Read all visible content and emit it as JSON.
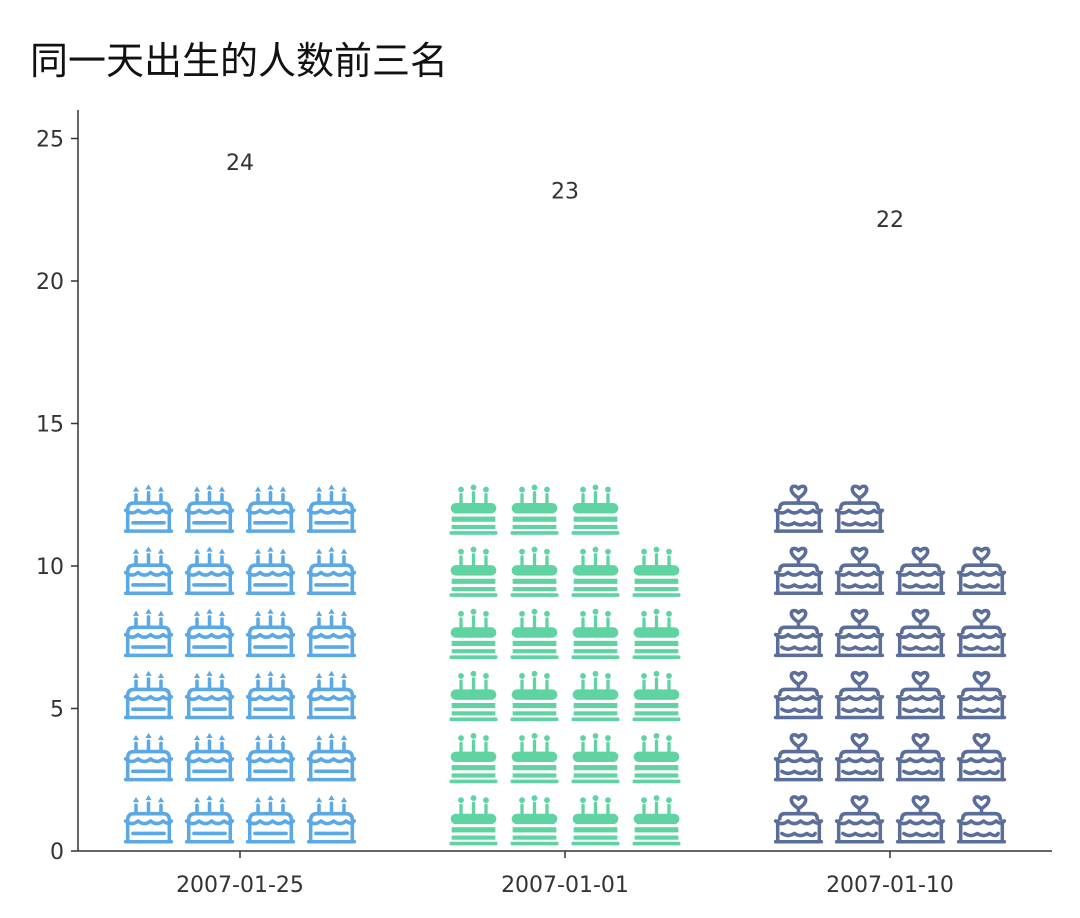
{
  "chart_data": {
    "type": "bar",
    "title": "同一天出生的人数前三名",
    "xlabel": "",
    "ylabel": "",
    "categories": [
      "2007-01-25",
      "2007-01-01",
      "2007-01-10"
    ],
    "values": [
      24,
      23,
      22
    ],
    "colors": [
      "#5aa9e6",
      "#5fd3a2",
      "#5b6e99"
    ],
    "icons": [
      "cake-candles-icon",
      "cake-candles-filled-icon",
      "cake-heart-icon"
    ],
    "icons_per_row": 4,
    "ylim": [
      0,
      26
    ],
    "yticks": [
      0,
      5,
      10,
      15,
      20,
      25
    ],
    "grid": false,
    "legend": "none"
  }
}
